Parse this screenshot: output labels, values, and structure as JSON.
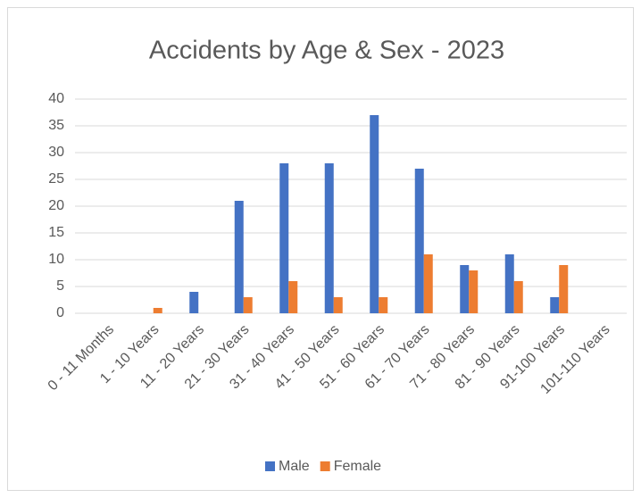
{
  "chart_data": {
    "type": "bar",
    "title": "Accidents by Age & Sex - 2023",
    "categories": [
      "0 - 11 Months",
      "1 - 10 Years",
      "11 - 20 Years",
      "21 - 30 Years",
      "31 - 40 Years",
      "41 - 50 Years",
      "51 - 60 Years",
      "61 - 70 Years",
      "71 - 80 Years",
      "81 - 90 Years",
      "91-100 Years",
      "101-110 Years"
    ],
    "series": [
      {
        "name": "Male",
        "color": "#4472c4",
        "values": [
          0,
          0,
          4,
          21,
          28,
          28,
          37,
          27,
          9,
          11,
          3,
          0
        ]
      },
      {
        "name": "Female",
        "color": "#ed7d31",
        "values": [
          0,
          1,
          0,
          3,
          6,
          3,
          3,
          11,
          8,
          6,
          9,
          0
        ]
      }
    ],
    "ylim": [
      0,
      40
    ],
    "yticks": [
      0,
      5,
      10,
      15,
      20,
      25,
      30,
      35,
      40
    ],
    "grid": true,
    "legend": "bottom"
  }
}
